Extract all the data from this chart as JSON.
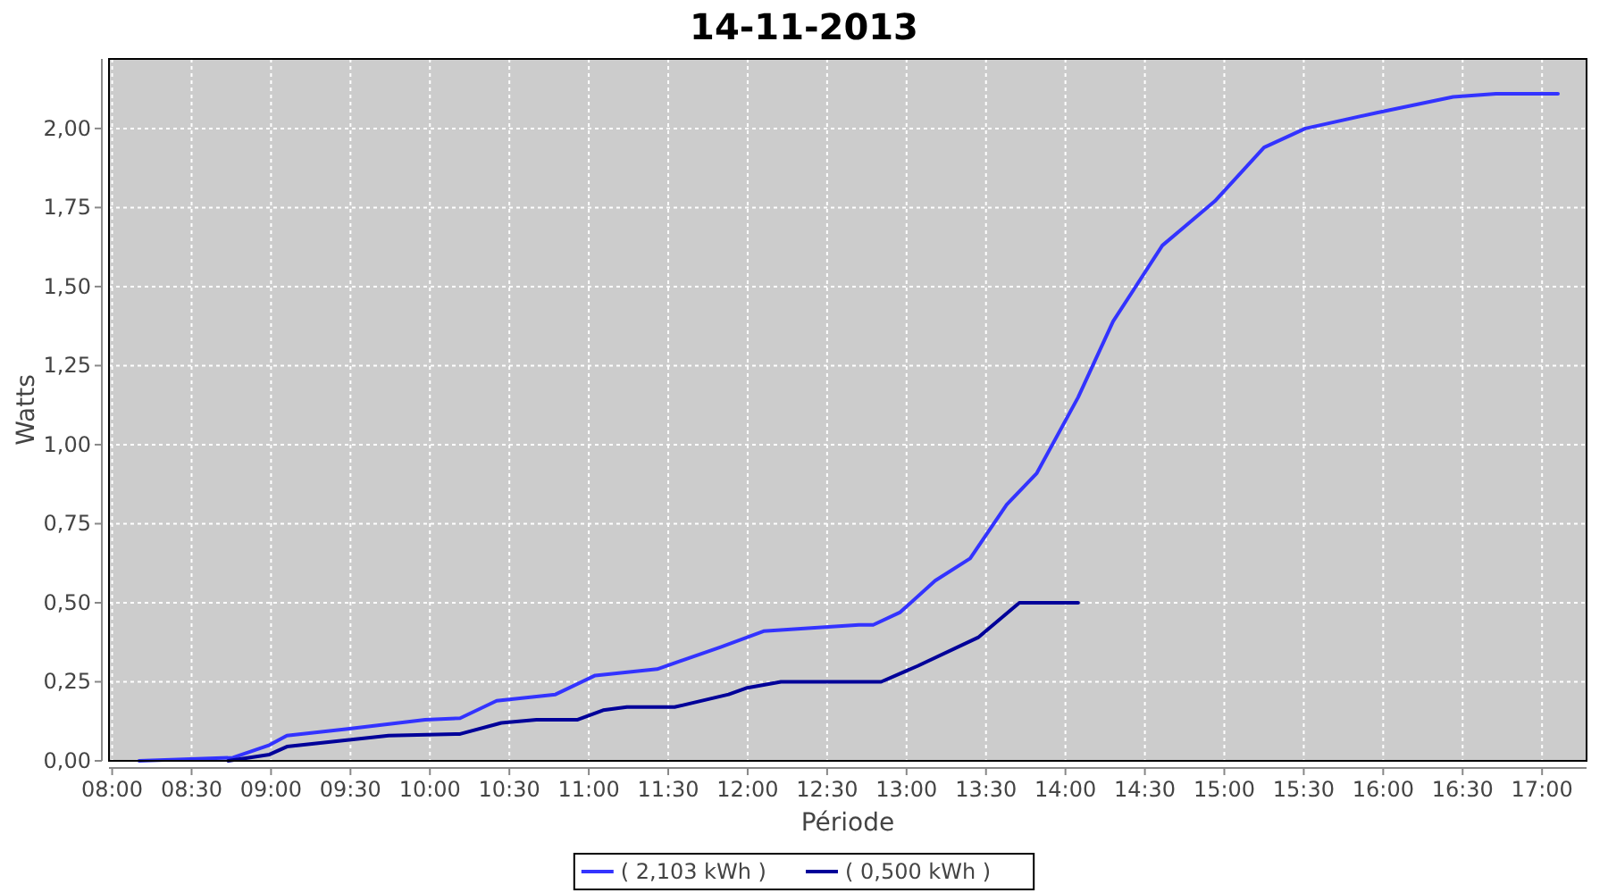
{
  "chart_data": {
    "type": "line",
    "title": "14-11-2013",
    "xlabel": "Période",
    "ylabel": "Watts",
    "xlim": [
      7.98,
      17.28
    ],
    "xticks": [
      {
        "value": 8,
        "label": "08:00"
      },
      {
        "value": 8.5,
        "label": "08:30"
      },
      {
        "value": 9,
        "label": "09:00"
      },
      {
        "value": 9.5,
        "label": "09:30"
      },
      {
        "value": 10,
        "label": "10:00"
      },
      {
        "value": 10.5,
        "label": "10:30"
      },
      {
        "value": 11,
        "label": "11:00"
      },
      {
        "value": 11.5,
        "label": "11:30"
      },
      {
        "value": 12,
        "label": "12:00"
      },
      {
        "value": 12.5,
        "label": "12:30"
      },
      {
        "value": 13,
        "label": "13:00"
      },
      {
        "value": 13.5,
        "label": "13:30"
      },
      {
        "value": 14,
        "label": "14:00"
      },
      {
        "value": 14.5,
        "label": "14:30"
      },
      {
        "value": 15,
        "label": "15:00"
      },
      {
        "value": 15.5,
        "label": "15:30"
      },
      {
        "value": 16,
        "label": "16:00"
      },
      {
        "value": 16.5,
        "label": "16:30"
      },
      {
        "value": 17,
        "label": "17:00"
      }
    ],
    "ylim": [
      0,
      2.22
    ],
    "yticks": [
      {
        "value": 0,
        "label": "0,00"
      },
      {
        "value": 0.25,
        "label": "0,25"
      },
      {
        "value": 0.5,
        "label": "0,50"
      },
      {
        "value": 0.75,
        "label": "0,75"
      },
      {
        "value": 1,
        "label": "1,00"
      },
      {
        "value": 1.25,
        "label": "1,25"
      },
      {
        "value": 1.5,
        "label": "1,50"
      },
      {
        "value": 1.75,
        "label": "1,75"
      },
      {
        "value": 2,
        "label": "2,00"
      }
    ],
    "grid": true,
    "legend": "bottom",
    "marker": "none",
    "line_style": "solid",
    "series": [
      {
        "name": "( 2,103 kWh )",
        "color": "#3333ff",
        "x": [
          8.17,
          8.76,
          8.99,
          9.1,
          9.47,
          9.97,
          10.19,
          10.42,
          10.79,
          11.04,
          11.43,
          11.83,
          12.1,
          12.7,
          12.79,
          12.96,
          13.18,
          13.4,
          13.63,
          13.82,
          14.08,
          14.3,
          14.61,
          14.94,
          15.25,
          15.51,
          15.96,
          16.44,
          16.71,
          17.1
        ],
        "values": [
          0,
          0.01,
          0.05,
          0.08,
          0.1,
          0.13,
          0.135,
          0.19,
          0.21,
          0.27,
          0.29,
          0.36,
          0.41,
          0.43,
          0.43,
          0.47,
          0.57,
          0.64,
          0.81,
          0.91,
          1.15,
          1.39,
          1.63,
          1.77,
          1.94,
          2.0,
          2.05,
          2.1,
          2.11,
          2.11
        ]
      },
      {
        "name": "( 0,500 kWh )",
        "color": "#000099",
        "x": [
          8.73,
          8.99,
          9.1,
          9.74,
          10.19,
          10.45,
          10.67,
          10.93,
          11.09,
          11.24,
          11.54,
          11.88,
          11.99,
          12.21,
          12.84,
          13.07,
          13.45,
          13.71,
          14.08
        ],
        "values": [
          0,
          0.02,
          0.045,
          0.08,
          0.085,
          0.12,
          0.13,
          0.13,
          0.16,
          0.17,
          0.17,
          0.21,
          0.23,
          0.25,
          0.25,
          0.3,
          0.39,
          0.5,
          0.5
        ]
      }
    ]
  }
}
